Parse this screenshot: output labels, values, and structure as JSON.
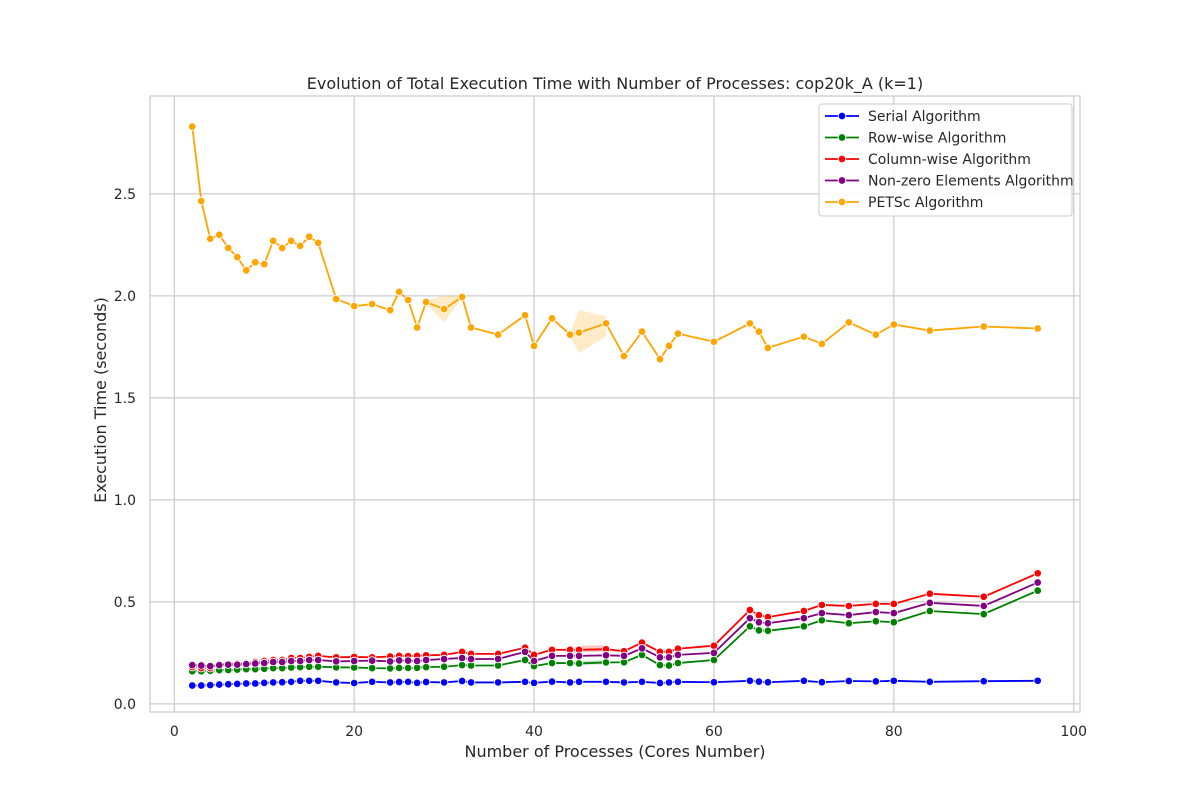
{
  "chart_data": {
    "type": "line",
    "title": "Evolution of Total Execution Time with Number of Processes: cop20k_A (k=1)",
    "xlabel": "Number of Processes (Cores Number)",
    "ylabel": "Execution Time (seconds)",
    "xlim": [
      -2.7,
      100.7
    ],
    "ylim": [
      -0.04,
      2.98
    ],
    "xticks": [
      0,
      20,
      40,
      60,
      80,
      100
    ],
    "yticks": [
      0.0,
      0.5,
      1.0,
      1.5,
      2.0,
      2.5
    ],
    "xtick_labels": [
      "0",
      "20",
      "40",
      "60",
      "80",
      "100"
    ],
    "ytick_labels": [
      "0.0",
      "0.5",
      "1.0",
      "1.5",
      "2.0",
      "2.5"
    ],
    "grid": true,
    "legend_position": "top-right",
    "x": [
      2,
      3,
      4,
      5,
      6,
      7,
      8,
      9,
      10,
      11,
      12,
      13,
      14,
      15,
      16,
      18,
      20,
      22,
      24,
      25,
      26,
      27,
      28,
      30,
      32,
      33,
      36,
      39,
      40,
      42,
      44,
      45,
      48,
      50,
      52,
      54,
      55,
      56,
      60,
      64,
      65,
      66,
      70,
      72,
      75,
      78,
      80,
      84,
      90,
      96
    ],
    "series": [
      {
        "name": "Serial Algorithm",
        "color": "#0000ff",
        "values": [
          0.09,
          0.09,
          0.092,
          0.095,
          0.096,
          0.098,
          0.1,
          0.1,
          0.103,
          0.105,
          0.106,
          0.108,
          0.113,
          0.113,
          0.113,
          0.105,
          0.102,
          0.108,
          0.105,
          0.107,
          0.108,
          0.103,
          0.107,
          0.105,
          0.112,
          0.105,
          0.105,
          0.108,
          0.103,
          0.109,
          0.105,
          0.108,
          0.108,
          0.105,
          0.108,
          0.102,
          0.105,
          0.108,
          0.106,
          0.113,
          0.109,
          0.106,
          0.113,
          0.106,
          0.112,
          0.11,
          0.113,
          0.108,
          0.111,
          0.113
        ]
      },
      {
        "name": "Row-wise Algorithm",
        "color": "#008000",
        "values": [
          0.16,
          0.16,
          0.162,
          0.165,
          0.166,
          0.168,
          0.17,
          0.17,
          0.172,
          0.175,
          0.175,
          0.178,
          0.18,
          0.182,
          0.182,
          0.179,
          0.178,
          0.175,
          0.174,
          0.176,
          0.176,
          0.177,
          0.18,
          0.182,
          0.19,
          0.188,
          0.188,
          0.215,
          0.185,
          0.2,
          0.2,
          0.198,
          0.203,
          0.204,
          0.24,
          0.19,
          0.188,
          0.2,
          0.215,
          0.38,
          0.36,
          0.358,
          0.38,
          0.41,
          0.395,
          0.405,
          0.4,
          0.455,
          0.44,
          0.555
        ]
      },
      {
        "name": "Column-wise Algorithm",
        "color": "#ff0000",
        "values": [
          0.18,
          0.175,
          0.175,
          0.195,
          0.195,
          0.198,
          0.2,
          0.205,
          0.21,
          0.215,
          0.215,
          0.225,
          0.225,
          0.23,
          0.235,
          0.228,
          0.23,
          0.228,
          0.232,
          0.235,
          0.234,
          0.235,
          0.238,
          0.24,
          0.255,
          0.245,
          0.245,
          0.275,
          0.24,
          0.265,
          0.265,
          0.265,
          0.268,
          0.258,
          0.3,
          0.255,
          0.255,
          0.27,
          0.285,
          0.46,
          0.435,
          0.425,
          0.455,
          0.485,
          0.48,
          0.49,
          0.49,
          0.54,
          0.525,
          0.64
        ]
      },
      {
        "name": "Non-zero Elements Algorithm",
        "color": "#800080",
        "values": [
          0.19,
          0.188,
          0.185,
          0.19,
          0.192,
          0.192,
          0.195,
          0.198,
          0.2,
          0.205,
          0.205,
          0.21,
          0.21,
          0.215,
          0.215,
          0.208,
          0.21,
          0.212,
          0.208,
          0.213,
          0.212,
          0.21,
          0.215,
          0.22,
          0.225,
          0.22,
          0.22,
          0.255,
          0.21,
          0.235,
          0.235,
          0.235,
          0.238,
          0.235,
          0.272,
          0.228,
          0.228,
          0.24,
          0.25,
          0.42,
          0.4,
          0.395,
          0.42,
          0.445,
          0.435,
          0.45,
          0.445,
          0.495,
          0.48,
          0.595
        ]
      },
      {
        "name": "PETSc Algorithm",
        "color": "#ffa500",
        "values": [
          2.83,
          2.465,
          2.28,
          2.3,
          2.235,
          2.19,
          2.125,
          2.165,
          2.155,
          2.27,
          2.235,
          2.27,
          2.245,
          2.29,
          2.26,
          1.985,
          1.95,
          1.96,
          1.93,
          2.02,
          1.98,
          1.845,
          1.97,
          1.935,
          1.995,
          1.845,
          1.81,
          1.905,
          1.755,
          1.89,
          1.81,
          1.82,
          1.865,
          1.705,
          1.825,
          1.69,
          1.755,
          1.815,
          1.775,
          1.865,
          1.825,
          1.745,
          1.8,
          1.765,
          1.87,
          1.81,
          1.86,
          1.83,
          1.85,
          1.84
        ]
      }
    ],
    "bands": [
      {
        "series": "PETSc Algorithm",
        "color": "#ffa500",
        "x": [
          28,
          30,
          32
        ],
        "lower": [
          1.96,
          1.87,
          1.99
        ],
        "upper": [
          1.98,
          2.0,
          2.0
        ]
      },
      {
        "series": "PETSc Algorithm",
        "color": "#ffa500",
        "x": [
          44,
          45,
          48
        ],
        "lower": [
          1.8,
          1.72,
          1.8
        ],
        "upper": [
          1.82,
          1.93,
          1.9
        ]
      },
      {
        "series": "Column-wise Algorithm",
        "color": "#ff0000",
        "x": [
          44,
          45,
          48
        ],
        "lower": [
          0.25,
          0.255,
          0.255
        ],
        "upper": [
          0.27,
          0.285,
          0.288
        ]
      },
      {
        "series": "Row-wise Algorithm",
        "color": "#008000",
        "x": [
          44,
          45,
          48
        ],
        "lower": [
          0.19,
          0.19,
          0.195
        ],
        "upper": [
          0.205,
          0.21,
          0.215
        ]
      }
    ]
  }
}
